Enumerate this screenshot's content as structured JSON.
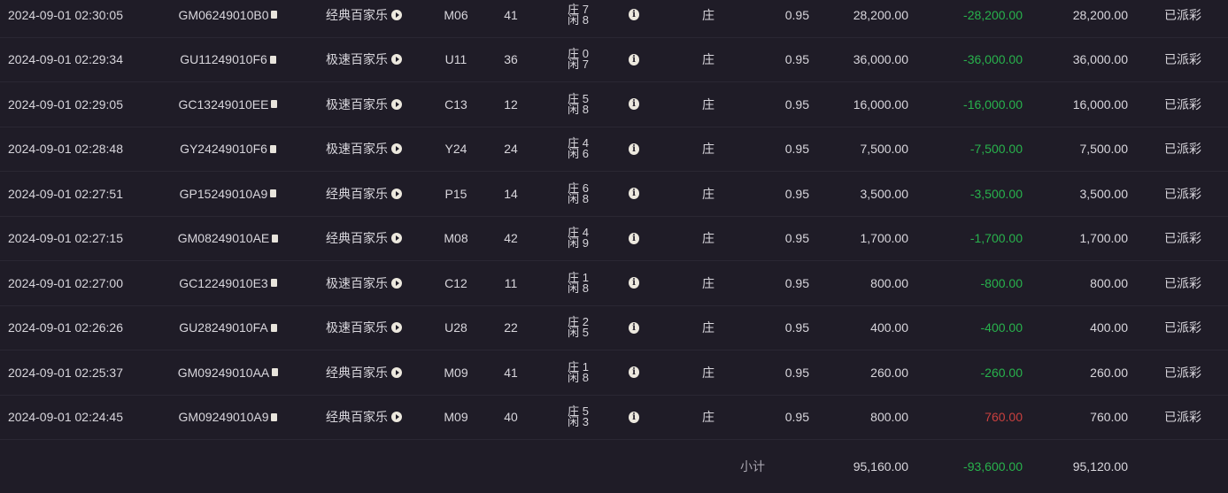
{
  "rows": [
    {
      "time": "2024-09-01 02:30:05",
      "game_id": "GM06249010B0",
      "game": "经典百家乐",
      "table": "M06",
      "shoe": "41",
      "banker": "庄 7",
      "player": "闲 8",
      "bet": "庄",
      "odds": "0.95",
      "amount": "28,200.00",
      "winloss": "-28,200.00",
      "valid": "28,200.00",
      "status": "已派彩"
    },
    {
      "time": "2024-09-01 02:29:34",
      "game_id": "GU11249010F6",
      "game": "极速百家乐",
      "table": "U11",
      "shoe": "36",
      "banker": "庄 0",
      "player": "闲 7",
      "bet": "庄",
      "odds": "0.95",
      "amount": "36,000.00",
      "winloss": "-36,000.00",
      "valid": "36,000.00",
      "status": "已派彩"
    },
    {
      "time": "2024-09-01 02:29:05",
      "game_id": "GC13249010EE",
      "game": "极速百家乐",
      "table": "C13",
      "shoe": "12",
      "banker": "庄 5",
      "player": "闲 8",
      "bet": "庄",
      "odds": "0.95",
      "amount": "16,000.00",
      "winloss": "-16,000.00",
      "valid": "16,000.00",
      "status": "已派彩"
    },
    {
      "time": "2024-09-01 02:28:48",
      "game_id": "GY24249010F6",
      "game": "极速百家乐",
      "table": "Y24",
      "shoe": "24",
      "banker": "庄 4",
      "player": "闲 6",
      "bet": "庄",
      "odds": "0.95",
      "amount": "7,500.00",
      "winloss": "-7,500.00",
      "valid": "7,500.00",
      "status": "已派彩"
    },
    {
      "time": "2024-09-01 02:27:51",
      "game_id": "GP15249010A9",
      "game": "经典百家乐",
      "table": "P15",
      "shoe": "14",
      "banker": "庄 6",
      "player": "闲 8",
      "bet": "庄",
      "odds": "0.95",
      "amount": "3,500.00",
      "winloss": "-3,500.00",
      "valid": "3,500.00",
      "status": "已派彩"
    },
    {
      "time": "2024-09-01 02:27:15",
      "game_id": "GM08249010AE",
      "game": "经典百家乐",
      "table": "M08",
      "shoe": "42",
      "banker": "庄 4",
      "player": "闲 9",
      "bet": "庄",
      "odds": "0.95",
      "amount": "1,700.00",
      "winloss": "-1,700.00",
      "valid": "1,700.00",
      "status": "已派彩"
    },
    {
      "time": "2024-09-01 02:27:00",
      "game_id": "GC12249010E3",
      "game": "极速百家乐",
      "table": "C12",
      "shoe": "11",
      "banker": "庄 1",
      "player": "闲 8",
      "bet": "庄",
      "odds": "0.95",
      "amount": "800.00",
      "winloss": "-800.00",
      "valid": "800.00",
      "status": "已派彩"
    },
    {
      "time": "2024-09-01 02:26:26",
      "game_id": "GU28249010FA",
      "game": "极速百家乐",
      "table": "U28",
      "shoe": "22",
      "banker": "庄 2",
      "player": "闲 5",
      "bet": "庄",
      "odds": "0.95",
      "amount": "400.00",
      "winloss": "-400.00",
      "valid": "400.00",
      "status": "已派彩"
    },
    {
      "time": "2024-09-01 02:25:37",
      "game_id": "GM09249010AA",
      "game": "经典百家乐",
      "table": "M09",
      "shoe": "41",
      "banker": "庄 1",
      "player": "闲 8",
      "bet": "庄",
      "odds": "0.95",
      "amount": "260.00",
      "winloss": "-260.00",
      "valid": "260.00",
      "status": "已派彩"
    },
    {
      "time": "2024-09-01 02:24:45",
      "game_id": "GM09249010A9",
      "game": "经典百家乐",
      "table": "M09",
      "shoe": "40",
      "banker": "庄 5",
      "player": "闲 3",
      "bet": "庄",
      "odds": "0.95",
      "amount": "800.00",
      "winloss": "760.00",
      "valid": "760.00",
      "status": "已派彩"
    }
  ],
  "subtotal": {
    "label": "小计",
    "amount": "95,160.00",
    "winloss": "-93,600.00",
    "valid": "95,120.00"
  },
  "icons": {
    "copy": "copy-icon",
    "play": "play-circle-icon",
    "info": "info-icon"
  },
  "colors": {
    "background": "#1f1c27",
    "loss": "#28b24c",
    "win": "#c9403e"
  }
}
